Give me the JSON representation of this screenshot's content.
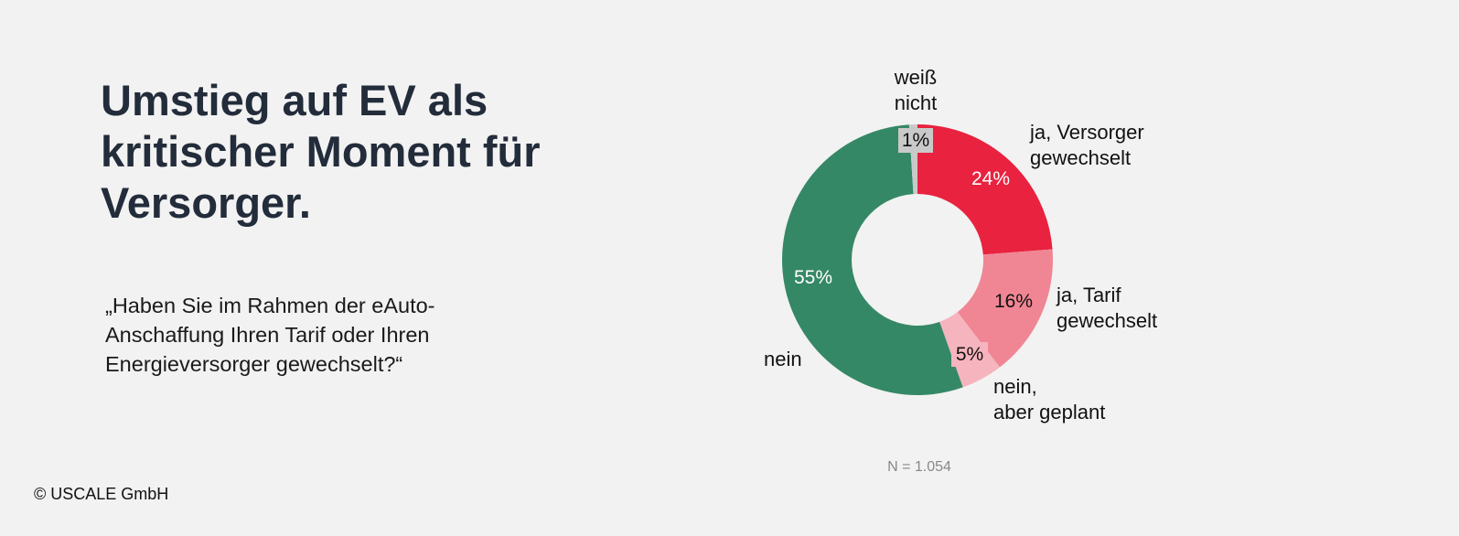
{
  "title": "Umstieg auf EV als kritischer Moment für Versorger.",
  "question": "„Haben Sie im Rahmen der eAuto-Anschaffung Ihren Tarif oder Ihren Energieversorger gewechselt?“",
  "copyright": "© USCALE GmbH",
  "chart_data": {
    "type": "pie",
    "donut": true,
    "slices": [
      {
        "label": "ja, Versorger gewechselt",
        "lines": [
          "ja, Versorger",
          "gewechselt"
        ],
        "value": 24,
        "pct_label": "24%",
        "color": "#e8223f",
        "pct_color": "#ffffff"
      },
      {
        "label": "ja, Tarif gewechselt",
        "lines": [
          "ja, Tarif",
          "gewechselt"
        ],
        "value": 16,
        "pct_label": "16%",
        "color": "#f08694",
        "pct_color": "#111111"
      },
      {
        "label": "nein, aber geplant",
        "lines": [
          "nein,",
          "aber geplant"
        ],
        "value": 5,
        "pct_label": "5%",
        "color": "#f6b4be",
        "pct_color": "#111111"
      },
      {
        "label": "nein",
        "lines": [
          "nein"
        ],
        "value": 55,
        "pct_label": "55%",
        "color": "#358866",
        "pct_color": "#ffffff"
      },
      {
        "label": "weiß nicht",
        "lines": [
          "weiß",
          "nicht"
        ],
        "value": 1,
        "pct_label": "1%",
        "color": "#c9c9c9",
        "pct_color": "#111111"
      }
    ],
    "note": "N = 1.054"
  }
}
